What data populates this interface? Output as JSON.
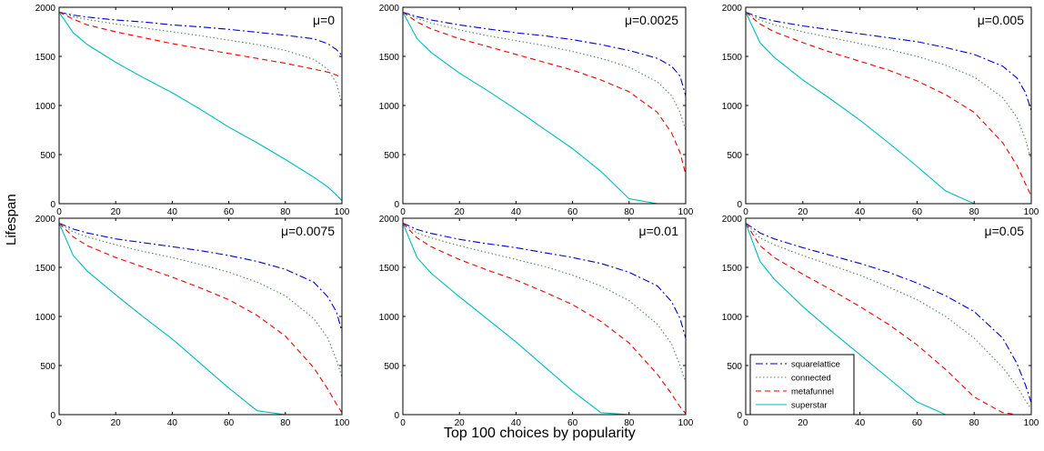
{
  "figure": {
    "xlabel": "Top 100 choices by popularity",
    "ylabel": "Lifespan"
  },
  "chart_data": [
    {
      "type": "line",
      "title": "μ=0",
      "xlim": [
        0,
        100
      ],
      "ylim": [
        0,
        2000
      ],
      "xticks": [
        0,
        20,
        40,
        60,
        80,
        100
      ],
      "yticks": [
        0,
        500,
        1000,
        1500,
        2000
      ],
      "grid": false,
      "x": [
        0,
        5,
        10,
        20,
        30,
        40,
        50,
        60,
        70,
        80,
        90,
        95,
        98,
        100
      ],
      "series": [
        {
          "name": "squarelattice",
          "color": "#0000cc",
          "dash": "dashdot",
          "values": [
            1950,
            1920,
            1900,
            1870,
            1850,
            1820,
            1800,
            1775,
            1745,
            1715,
            1680,
            1630,
            1570,
            1510
          ]
        },
        {
          "name": "connected",
          "color": "#558855",
          "dash": "dotted",
          "values": [
            1950,
            1905,
            1875,
            1830,
            1790,
            1750,
            1710,
            1665,
            1620,
            1560,
            1470,
            1370,
            1230,
            1020
          ]
        },
        {
          "name": "metafunnel",
          "color": "#ee0000",
          "dash": "dashed",
          "values": [
            1950,
            1880,
            1820,
            1750,
            1690,
            1630,
            1580,
            1530,
            1480,
            1430,
            1370,
            1340,
            1310,
            1280
          ]
        },
        {
          "name": "superstar",
          "color": "#00bbbb",
          "dash": "solid",
          "values": [
            1950,
            1740,
            1620,
            1440,
            1280,
            1130,
            960,
            780,
            620,
            450,
            270,
            170,
            90,
            30
          ]
        }
      ]
    },
    {
      "type": "line",
      "title": "μ=0.0025",
      "xlim": [
        0,
        100
      ],
      "ylim": [
        0,
        2000
      ],
      "xticks": [
        0,
        20,
        40,
        60,
        80,
        100
      ],
      "yticks": [
        0,
        500,
        1000,
        1500,
        2000
      ],
      "grid": false,
      "x": [
        0,
        5,
        10,
        20,
        30,
        40,
        50,
        60,
        70,
        80,
        90,
        95,
        98,
        100
      ],
      "series": [
        {
          "name": "squarelattice",
          "color": "#0000cc",
          "dash": "dashdot",
          "values": [
            1950,
            1905,
            1870,
            1820,
            1780,
            1740,
            1710,
            1670,
            1620,
            1560,
            1480,
            1400,
            1300,
            1100
          ]
        },
        {
          "name": "connected",
          "color": "#558855",
          "dash": "dotted",
          "values": [
            1950,
            1885,
            1840,
            1770,
            1710,
            1660,
            1610,
            1550,
            1480,
            1390,
            1240,
            1100,
            930,
            750
          ]
        },
        {
          "name": "metafunnel",
          "color": "#ee0000",
          "dash": "dashed",
          "values": [
            1950,
            1850,
            1780,
            1680,
            1600,
            1520,
            1440,
            1360,
            1260,
            1140,
            930,
            720,
            520,
            300
          ]
        },
        {
          "name": "superstar",
          "color": "#00bbbb",
          "dash": "solid",
          "values": [
            1950,
            1680,
            1540,
            1330,
            1150,
            960,
            760,
            560,
            330,
            50,
            0,
            0,
            0,
            0
          ]
        }
      ]
    },
    {
      "type": "line",
      "title": "μ=0.005",
      "xlim": [
        0,
        100
      ],
      "ylim": [
        0,
        2000
      ],
      "xticks": [
        0,
        20,
        40,
        60,
        80,
        100
      ],
      "yticks": [
        0,
        500,
        1000,
        1500,
        2000
      ],
      "grid": false,
      "x": [
        0,
        5,
        10,
        20,
        30,
        40,
        50,
        60,
        70,
        80,
        90,
        95,
        98,
        100
      ],
      "series": [
        {
          "name": "squarelattice",
          "color": "#0000cc",
          "dash": "dashdot",
          "values": [
            1950,
            1895,
            1860,
            1810,
            1770,
            1730,
            1690,
            1650,
            1590,
            1520,
            1400,
            1280,
            1130,
            950
          ]
        },
        {
          "name": "connected",
          "color": "#558855",
          "dash": "dotted",
          "values": [
            1950,
            1870,
            1820,
            1750,
            1690,
            1630,
            1570,
            1500,
            1410,
            1290,
            1080,
            880,
            650,
            450
          ]
        },
        {
          "name": "metafunnel",
          "color": "#ee0000",
          "dash": "dashed",
          "values": [
            1950,
            1830,
            1750,
            1640,
            1540,
            1450,
            1360,
            1250,
            1110,
            930,
            620,
            390,
            200,
            80
          ]
        },
        {
          "name": "superstar",
          "color": "#00bbbb",
          "dash": "solid",
          "values": [
            1950,
            1640,
            1490,
            1260,
            1060,
            850,
            620,
            380,
            130,
            0,
            0,
            0,
            0,
            0
          ]
        }
      ]
    },
    {
      "type": "line",
      "title": "μ=0.0075",
      "xlim": [
        0,
        100
      ],
      "ylim": [
        0,
        2000
      ],
      "xticks": [
        0,
        20,
        40,
        60,
        80,
        100
      ],
      "yticks": [
        0,
        500,
        1000,
        1500,
        2000
      ],
      "grid": false,
      "x": [
        0,
        5,
        10,
        20,
        30,
        40,
        50,
        60,
        70,
        80,
        90,
        95,
        98,
        100
      ],
      "series": [
        {
          "name": "squarelattice",
          "color": "#0000cc",
          "dash": "dashdot",
          "values": [
            1950,
            1890,
            1850,
            1790,
            1750,
            1710,
            1670,
            1620,
            1560,
            1480,
            1350,
            1200,
            1050,
            850
          ]
        },
        {
          "name": "connected",
          "color": "#558855",
          "dash": "dotted",
          "values": [
            1950,
            1860,
            1810,
            1730,
            1660,
            1600,
            1530,
            1450,
            1350,
            1210,
            980,
            780,
            560,
            380
          ]
        },
        {
          "name": "metafunnel",
          "color": "#ee0000",
          "dash": "dashed",
          "values": [
            1950,
            1810,
            1720,
            1600,
            1500,
            1400,
            1290,
            1170,
            1010,
            800,
            480,
            260,
            110,
            20
          ]
        },
        {
          "name": "superstar",
          "color": "#00bbbb",
          "dash": "solid",
          "values": [
            1950,
            1620,
            1460,
            1220,
            990,
            770,
            520,
            270,
            40,
            0,
            0,
            0,
            0,
            0
          ]
        }
      ]
    },
    {
      "type": "line",
      "title": "μ=0.01",
      "xlim": [
        0,
        100
      ],
      "ylim": [
        0,
        2000
      ],
      "xticks": [
        0,
        20,
        40,
        60,
        80,
        100
      ],
      "yticks": [
        0,
        500,
        1000,
        1500,
        2000
      ],
      "grid": false,
      "x": [
        0,
        5,
        10,
        20,
        30,
        40,
        50,
        60,
        70,
        80,
        90,
        95,
        98,
        100
      ],
      "series": [
        {
          "name": "squarelattice",
          "color": "#0000cc",
          "dash": "dashdot",
          "values": [
            1950,
            1885,
            1845,
            1785,
            1740,
            1700,
            1650,
            1600,
            1540,
            1450,
            1310,
            1150,
            980,
            780
          ]
        },
        {
          "name": "connected",
          "color": "#558855",
          "dash": "dotted",
          "values": [
            1950,
            1850,
            1800,
            1720,
            1650,
            1580,
            1510,
            1420,
            1310,
            1160,
            920,
            720,
            500,
            330
          ]
        },
        {
          "name": "metafunnel",
          "color": "#ee0000",
          "dash": "dashed",
          "values": [
            1950,
            1800,
            1710,
            1580,
            1470,
            1370,
            1250,
            1120,
            950,
            730,
            410,
            210,
            80,
            10
          ]
        },
        {
          "name": "superstar",
          "color": "#00bbbb",
          "dash": "solid",
          "values": [
            1950,
            1600,
            1440,
            1200,
            970,
            740,
            490,
            240,
            20,
            0,
            0,
            0,
            0,
            0
          ]
        }
      ]
    },
    {
      "type": "line",
      "title": "μ=0.05",
      "xlim": [
        0,
        100
      ],
      "ylim": [
        0,
        2000
      ],
      "xticks": [
        0,
        20,
        40,
        60,
        80,
        100
      ],
      "yticks": [
        0,
        500,
        1000,
        1500,
        2000
      ],
      "grid": false,
      "legend": {
        "placement": "bottom-left",
        "entries": [
          "squarelattice",
          "connected",
          "metafunnel",
          "superstar"
        ]
      },
      "x": [
        0,
        5,
        10,
        20,
        30,
        40,
        50,
        60,
        70,
        80,
        90,
        95,
        98,
        100
      ],
      "series": [
        {
          "name": "squarelattice",
          "color": "#0000cc",
          "dash": "dashdot",
          "values": [
            1950,
            1850,
            1790,
            1700,
            1620,
            1540,
            1450,
            1340,
            1210,
            1050,
            780,
            520,
            300,
            120
          ]
        },
        {
          "name": "connected",
          "color": "#558855",
          "dash": "dotted",
          "values": [
            1950,
            1800,
            1730,
            1620,
            1520,
            1420,
            1300,
            1170,
            1000,
            780,
            480,
            290,
            140,
            60
          ]
        },
        {
          "name": "metafunnel",
          "color": "#ee0000",
          "dash": "dashed",
          "values": [
            1950,
            1720,
            1600,
            1430,
            1270,
            1100,
            920,
            710,
            460,
            180,
            20,
            0,
            0,
            0
          ]
        },
        {
          "name": "superstar",
          "color": "#00bbbb",
          "dash": "solid",
          "values": [
            1950,
            1560,
            1380,
            1100,
            850,
            610,
            370,
            130,
            0,
            0,
            0,
            0,
            0,
            0
          ]
        }
      ]
    }
  ]
}
